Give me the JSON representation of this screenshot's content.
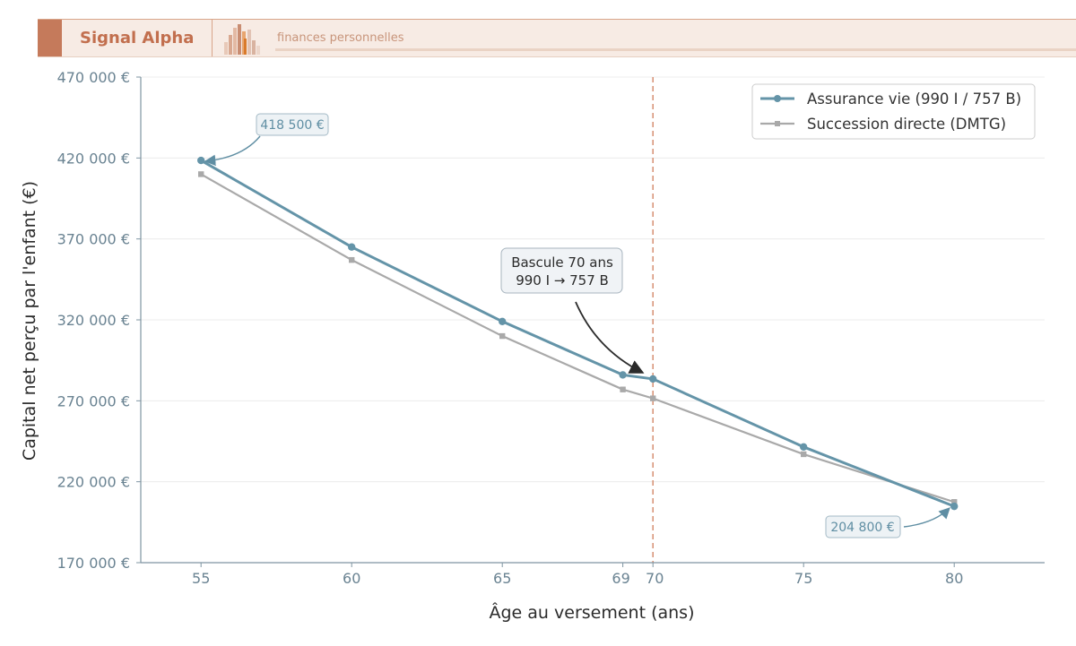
{
  "header": {
    "brand": "Signal Alpha",
    "tagline": "finances personnelles",
    "logo_icon": "bar-columns-logo-icon",
    "colors": {
      "accent": "#c57a5b",
      "background": "#f7ebe4",
      "brand_text": "#c26f4e"
    }
  },
  "chart_data": {
    "type": "line",
    "title": "",
    "xlabel": "Âge au versement (ans)",
    "ylabel": "Capital net perçu par l'enfant (€)",
    "xlim": [
      53,
      83
    ],
    "ylim": [
      170000,
      470000
    ],
    "x_ticks": [
      55,
      60,
      65,
      69,
      70,
      75,
      80
    ],
    "y_ticks": [
      170000,
      220000,
      270000,
      320000,
      370000,
      420000,
      470000
    ],
    "y_tick_labels": [
      "170 000 €",
      "220 000 €",
      "270 000 €",
      "320 000 €",
      "370 000 €",
      "420 000 €",
      "470 000 €"
    ],
    "grid": "horizontal",
    "legend_position": "top-right",
    "series": [
      {
        "name": "Assurance vie (990 I / 757 B)",
        "color": "#6494a8",
        "marker": "circle",
        "x": [
          55,
          60,
          65,
          69,
          70,
          75,
          80
        ],
        "y": [
          418500,
          365000,
          319000,
          286000,
          283500,
          241500,
          204800
        ]
      },
      {
        "name": "Succession directe (DMTG)",
        "color": "#a9a9a9",
        "marker": "square",
        "x": [
          55,
          60,
          65,
          69,
          70,
          75,
          80
        ],
        "y": [
          410000,
          357000,
          310000,
          277000,
          271500,
          237000,
          207500
        ]
      }
    ],
    "reference_line": {
      "x": 70,
      "color": "#d9967a",
      "style": "dashed"
    },
    "annotations": [
      {
        "text": "418 500 €",
        "x": 55,
        "y": 418500
      },
      {
        "text": "204 800 €",
        "x": 80,
        "y": 204800
      },
      {
        "lines": [
          "Bascule 70 ans",
          "990 I → 757 B"
        ],
        "x": 70,
        "y": 283500
      }
    ]
  }
}
